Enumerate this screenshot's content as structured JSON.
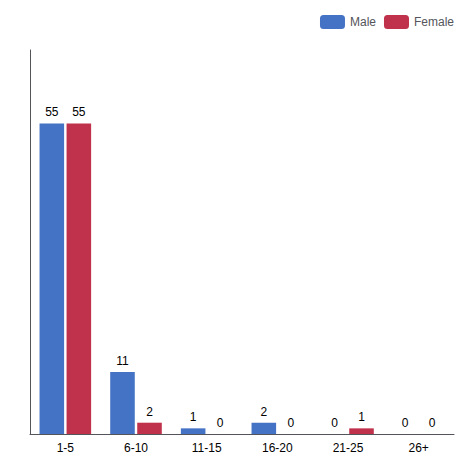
{
  "chart_data": {
    "type": "bar",
    "categories": [
      "1-5",
      "6-10",
      "11-15",
      "16-20",
      "21-25",
      "26+"
    ],
    "series": [
      {
        "name": "Male",
        "color": "#4472C4",
        "values": [
          55,
          11,
          1,
          2,
          0,
          0
        ]
      },
      {
        "name": "Female",
        "color": "#C0314B",
        "values": [
          55,
          2,
          0,
          0,
          1,
          0
        ]
      }
    ],
    "ylim": [
      0,
      68
    ],
    "grid": false,
    "legend": "upper right",
    "data_labels": true,
    "tick_labels": "x"
  }
}
